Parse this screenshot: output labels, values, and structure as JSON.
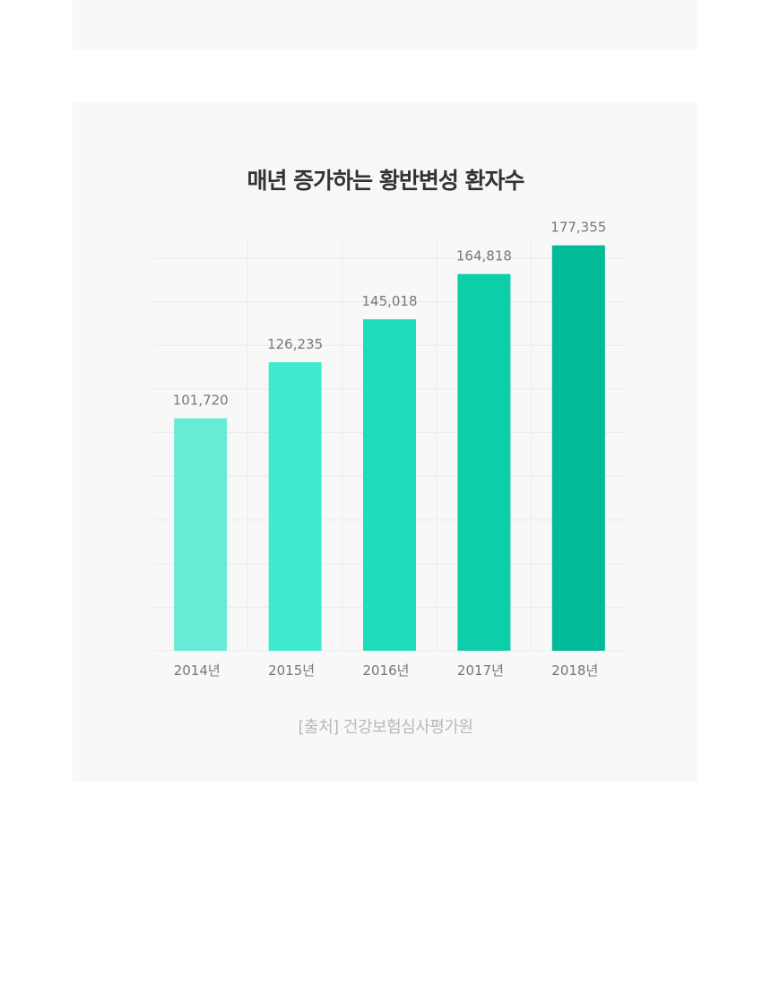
{
  "top_card": {},
  "chart": {
    "title": "매년 증가하는 황반변성 환자수",
    "source": "[출처] 건강보험심사평가원"
  },
  "colors": {
    "card_background": "#f8f8f8",
    "grid": "#ebebeb",
    "label": "#777777",
    "bars": [
      "#66ecd6",
      "#3feacf",
      "#1dddbb",
      "#0ccea8",
      "#00ba98"
    ]
  },
  "chart_data": {
    "type": "bar",
    "title": "매년 증가하는 황반변성 환자수",
    "categories": [
      "2014년",
      "2015년",
      "2016년",
      "2017년",
      "2018년"
    ],
    "values": [
      101720,
      126235,
      145018,
      164818,
      177355
    ],
    "value_labels": [
      "101,720",
      "126,235",
      "145,018",
      "164,818",
      "177,355"
    ],
    "xlabel": "",
    "ylabel": "",
    "ylim": [
      0,
      180000
    ],
    "grid": true,
    "legend": "none"
  }
}
